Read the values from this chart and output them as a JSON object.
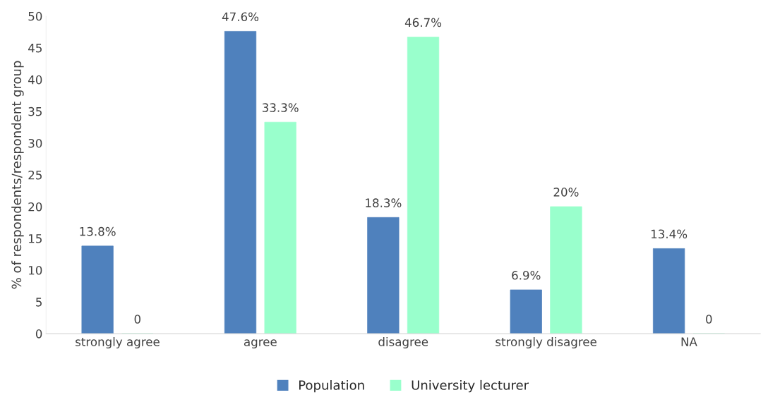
{
  "chart_data": {
    "type": "bar",
    "ylabel": "% of respondents/respondent group",
    "categories": [
      "strongly agree",
      "agree",
      "disagree",
      "strongly disagree",
      "NA"
    ],
    "series": [
      {
        "name": "Population",
        "color": "#4f81bd",
        "values": [
          13.8,
          47.6,
          18.3,
          6.9,
          13.4
        ],
        "value_labels": [
          "13.8%",
          "47.6%",
          "18.3%",
          "6.9%",
          "13.4%"
        ]
      },
      {
        "name": "University lecturer",
        "color": "#99ffcc",
        "values": [
          0,
          33.3,
          46.7,
          20,
          0
        ],
        "value_labels": [
          "0",
          "33.3%",
          "46.7%",
          "20%",
          "0"
        ]
      }
    ],
    "ylim": [
      0,
      50
    ],
    "yticks": [
      0,
      5,
      10,
      15,
      20,
      25,
      30,
      35,
      40,
      45,
      50
    ],
    "grid": false,
    "legend": "bottom"
  }
}
